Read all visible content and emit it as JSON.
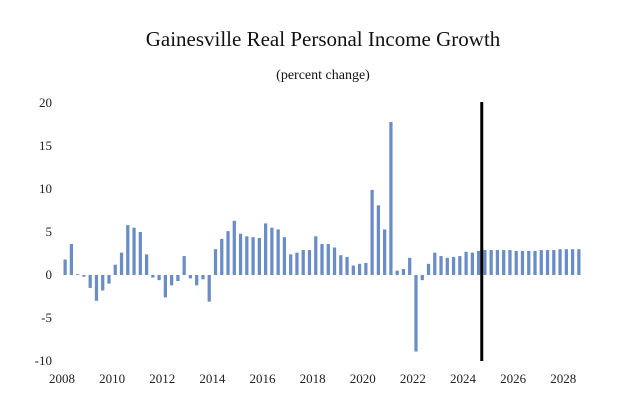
{
  "chart_data": {
    "type": "bar",
    "title": "Gainesville Real Personal Income Growth",
    "subtitle": "(percent change)",
    "xlabel": "",
    "ylabel": "",
    "ylim": [
      -10,
      20
    ],
    "yticks": [
      "20",
      "15",
      "10",
      "5",
      "0",
      "-5",
      "-10"
    ],
    "xticks": [
      "2008",
      "2010",
      "2012",
      "2014",
      "2016",
      "2018",
      "2020",
      "2022",
      "2024",
      "2026",
      "2028"
    ],
    "grid": false,
    "bar_color": "#6a8cc7",
    "forecast_marker_color": "#000000",
    "forecast_marker_x": 2024.75,
    "x_start": 2008.0,
    "x_end": 2028.75,
    "series": [
      {
        "name": "Real Personal Income Growth",
        "frequency": "quarterly",
        "start": 2008.0,
        "values": [
          1.8,
          3.6,
          0.1,
          -0.2,
          -1.5,
          -3.0,
          -1.8,
          -1.0,
          1.2,
          2.6,
          5.8,
          5.5,
          5.0,
          2.4,
          -0.3,
          -0.6,
          -2.6,
          -1.2,
          -0.7,
          2.2,
          -0.4,
          -1.2,
          -0.5,
          -3.1,
          3.0,
          4.2,
          5.1,
          6.3,
          4.8,
          4.5,
          4.4,
          4.3,
          6.0,
          5.5,
          5.3,
          4.4,
          2.4,
          2.6,
          2.9,
          2.9,
          4.5,
          3.6,
          3.6,
          3.2,
          2.3,
          2.1,
          1.1,
          1.3,
          1.4,
          9.9,
          8.1,
          5.3,
          17.8,
          0.5,
          0.7,
          2.0,
          -8.9,
          -0.6,
          1.3,
          2.6,
          2.2,
          2.0,
          2.1,
          2.2,
          2.7,
          2.6,
          2.8,
          2.9,
          2.9,
          2.9,
          2.9,
          2.9,
          2.8,
          2.8,
          2.8,
          2.8,
          2.9,
          2.9,
          2.9,
          3.0,
          3.0,
          3.0,
          3.0
        ]
      }
    ]
  }
}
